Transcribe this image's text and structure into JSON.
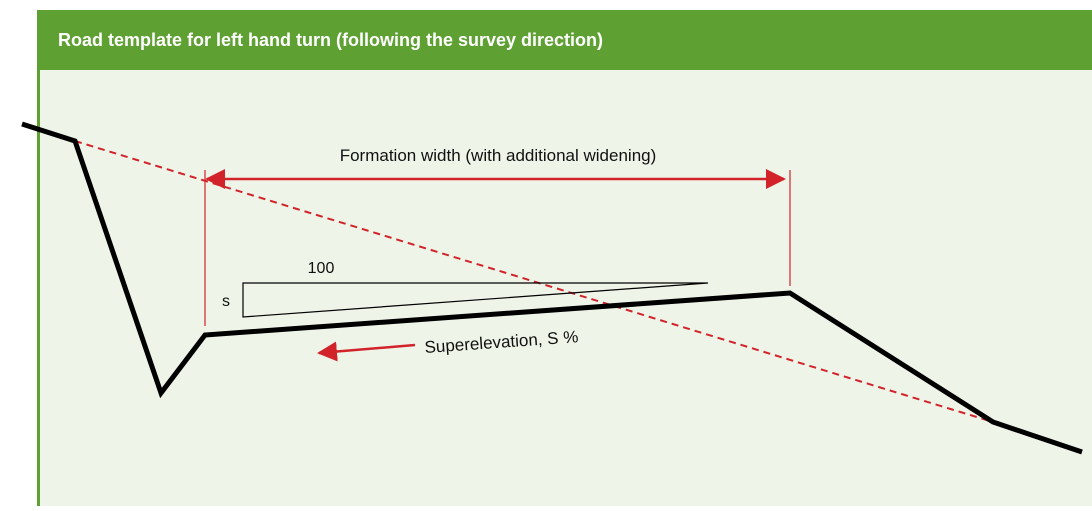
{
  "header": {
    "title": "Road template for left hand turn (following the survey direction)"
  },
  "labels": {
    "formation_width": "Formation width (with additional widening)",
    "run": "100",
    "rise": "s",
    "superelevation": "Superelevation, S %"
  }
}
